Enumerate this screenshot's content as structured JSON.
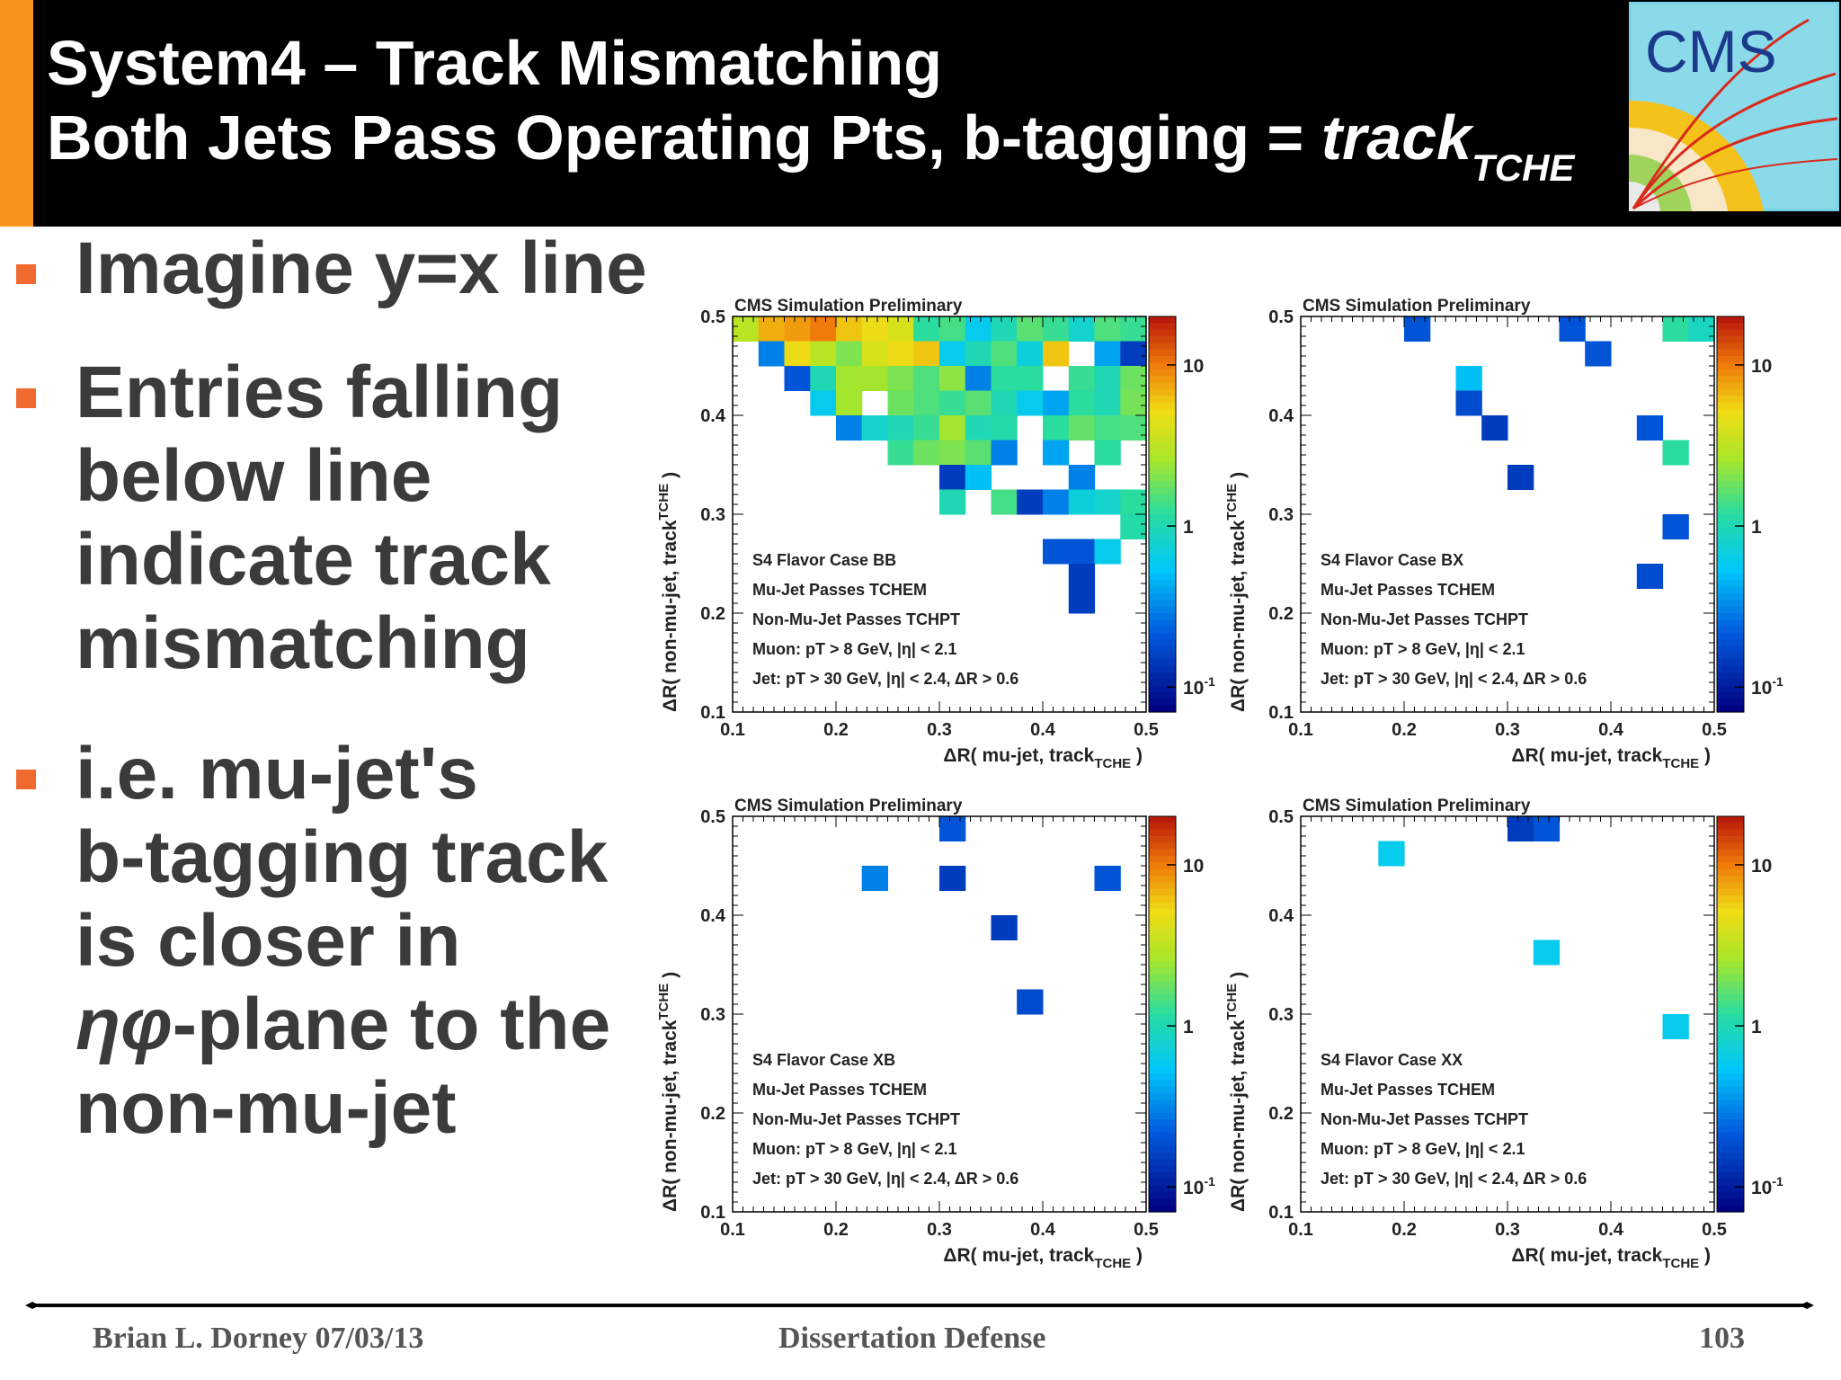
{
  "slide": {
    "title_line1": "System4 – Track Mismatching",
    "title_line2_prefix": "Both Jets Pass Operating Pts, b-tagging = ",
    "title_line2_italic": "track",
    "title_line2_sub": "TCHE",
    "logo_text": "CMS",
    "colors": {
      "header_bg": "#000000",
      "accent": "#f7941d",
      "bullet_marker": "#f06a30",
      "text": "#3b3b3b"
    }
  },
  "bullets": [
    {
      "lines": [
        "Imagine y=x line"
      ]
    },
    {
      "lines": [
        "Entries falling",
        "below line",
        "indicate track",
        "mismatching"
      ]
    },
    {
      "lines": [
        "i.e. mu-jet's",
        "b-tagging track",
        "is closer in"
      ],
      "line_ital": "ηφ",
      "line_rest": "-plane to the",
      "last_line": "non-mu-jet"
    }
  ],
  "footer": {
    "left": "Brian L. Dorney 07/03/13",
    "center": "Dissertation Defense",
    "right": "103"
  },
  "chart_data": [
    {
      "type": "heatmap",
      "title": "CMS Simulation Preliminary",
      "xlabel": "ΔR( mu-jet, track_TCHE )",
      "ylabel": "ΔR( non-mu-jet, track_TCHE )",
      "xlim": [
        0.1,
        0.5
      ],
      "ylim": [
        0.1,
        0.5
      ],
      "x_ticks": [
        "0.1",
        "0.2",
        "0.3",
        "0.4",
        "0.5"
      ],
      "y_ticks": [
        "0.1",
        "0.2",
        "0.3",
        "0.4",
        "0.5"
      ],
      "z_log": true,
      "z_ticks": [
        "10",
        "1",
        "10-1"
      ],
      "annotations": [
        "S4 Flavor Case BB",
        "Mu-Jet Passes TCHEM",
        "Non-Mu-Jet Passes TCHPT",
        "Muon: pT > 8 GeV, |η| < 2.1",
        "Jet: pT > 30 GeV, |η| < 2.4, ΔR > 0.6"
      ],
      "bins": [
        [
          0.1125,
          0.4875,
          3
        ],
        [
          0.1375,
          0.4875,
          7
        ],
        [
          0.1625,
          0.4875,
          8
        ],
        [
          0.1875,
          0.4875,
          10
        ],
        [
          0.2125,
          0.4875,
          6
        ],
        [
          0.2375,
          0.4875,
          5
        ],
        [
          0.2625,
          0.4875,
          4
        ],
        [
          0.2875,
          0.4875,
          1.2
        ],
        [
          0.3125,
          0.4875,
          1.4
        ],
        [
          0.3375,
          0.4875,
          0.6
        ],
        [
          0.3625,
          0.4875,
          1
        ],
        [
          0.3875,
          0.4875,
          1.6
        ],
        [
          0.4125,
          0.4875,
          1.3
        ],
        [
          0.4375,
          0.4875,
          0.8
        ],
        [
          0.4625,
          0.4875,
          1.5
        ],
        [
          0.4875,
          0.4875,
          1.3
        ],
        [
          0.1375,
          0.4625,
          0.3
        ],
        [
          0.1625,
          0.4625,
          5
        ],
        [
          0.1875,
          0.4625,
          3
        ],
        [
          0.2125,
          0.4625,
          2
        ],
        [
          0.2375,
          0.4625,
          4
        ],
        [
          0.2625,
          0.4625,
          5
        ],
        [
          0.2875,
          0.4625,
          6
        ],
        [
          0.3125,
          0.4625,
          0.6
        ],
        [
          0.3375,
          0.4625,
          1
        ],
        [
          0.3625,
          0.4625,
          1.5
        ],
        [
          0.3875,
          0.4625,
          0.7
        ],
        [
          0.4125,
          0.4625,
          6
        ],
        [
          0.4625,
          0.4625,
          0.4
        ],
        [
          0.4875,
          0.4625,
          0.15
        ],
        [
          0.1625,
          0.4375,
          0.2
        ],
        [
          0.1875,
          0.4375,
          1
        ],
        [
          0.2125,
          0.4375,
          2.5
        ],
        [
          0.2375,
          0.4375,
          2.5
        ],
        [
          0.2625,
          0.4375,
          2
        ],
        [
          0.2875,
          0.4375,
          1.5
        ],
        [
          0.3125,
          0.4375,
          2.2
        ],
        [
          0.3375,
          0.4375,
          0.3
        ],
        [
          0.3625,
          0.4375,
          1.2
        ],
        [
          0.3875,
          0.4375,
          1.2
        ],
        [
          0.4375,
          0.4375,
          1.3
        ],
        [
          0.4625,
          0.4375,
          1
        ],
        [
          0.4875,
          0.4375,
          1.8
        ],
        [
          0.1875,
          0.4125,
          0.6
        ],
        [
          0.2125,
          0.4125,
          2.5
        ],
        [
          0.2625,
          0.4125,
          1.8
        ],
        [
          0.2875,
          0.4125,
          1.5
        ],
        [
          0.3125,
          0.4125,
          1.3
        ],
        [
          0.3375,
          0.4125,
          1.6
        ],
        [
          0.3625,
          0.4125,
          1
        ],
        [
          0.3875,
          0.4125,
          0.6
        ],
        [
          0.4125,
          0.4125,
          0.4
        ],
        [
          0.4375,
          0.4125,
          1.2
        ],
        [
          0.4625,
          0.4125,
          1
        ],
        [
          0.4875,
          0.4125,
          1.9
        ],
        [
          0.2125,
          0.3875,
          0.3
        ],
        [
          0.2375,
          0.3875,
          0.8
        ],
        [
          0.2625,
          0.3875,
          1
        ],
        [
          0.2875,
          0.3875,
          1.3
        ],
        [
          0.3125,
          0.3875,
          2.5
        ],
        [
          0.3375,
          0.3875,
          1
        ],
        [
          0.3625,
          0.3875,
          1.1
        ],
        [
          0.4125,
          0.3875,
          1.2
        ],
        [
          0.4375,
          0.3875,
          1.7
        ],
        [
          0.4625,
          0.3875,
          1.4
        ],
        [
          0.4875,
          0.3875,
          1.5
        ],
        [
          0.2625,
          0.3625,
          1.3
        ],
        [
          0.2875,
          0.3625,
          1.8
        ],
        [
          0.3125,
          0.3625,
          2
        ],
        [
          0.3375,
          0.3625,
          1.6
        ],
        [
          0.3625,
          0.3625,
          0.3
        ],
        [
          0.4125,
          0.3625,
          0.4
        ],
        [
          0.4625,
          0.3625,
          1.2
        ],
        [
          0.3125,
          0.3375,
          0.15
        ],
        [
          0.3375,
          0.3375,
          0.5
        ],
        [
          0.4375,
          0.3375,
          0.3
        ],
        [
          0.3125,
          0.3125,
          1
        ],
        [
          0.3625,
          0.3125,
          1.4
        ],
        [
          0.3875,
          0.3125,
          0.15
        ],
        [
          0.4125,
          0.3125,
          0.3
        ],
        [
          0.4375,
          0.3125,
          0.7
        ],
        [
          0.4625,
          0.3125,
          0.8
        ],
        [
          0.4875,
          0.3125,
          1.2
        ],
        [
          0.4875,
          0.2875,
          1.1
        ],
        [
          0.4125,
          0.2625,
          0.2
        ],
        [
          0.4375,
          0.2625,
          0.2
        ],
        [
          0.4625,
          0.2625,
          0.6
        ],
        [
          0.4375,
          0.2375,
          0.15
        ],
        [
          0.4375,
          0.2125,
          0.15
        ]
      ]
    },
    {
      "type": "heatmap",
      "title": "CMS Simulation Preliminary",
      "xlabel": "ΔR( mu-jet, track_TCHE )",
      "ylabel": "ΔR( non-mu-jet, track_TCHE )",
      "xlim": [
        0.1,
        0.5
      ],
      "ylim": [
        0.1,
        0.5
      ],
      "x_ticks": [
        "0.1",
        "0.2",
        "0.3",
        "0.4",
        "0.5"
      ],
      "y_ticks": [
        "0.1",
        "0.2",
        "0.3",
        "0.4",
        "0.5"
      ],
      "z_log": true,
      "z_ticks": [
        "10",
        "1",
        "10-1"
      ],
      "annotations": [
        "S4 Flavor Case BX",
        "Mu-Jet Passes TCHEM",
        "Non-Mu-Jet Passes TCHPT",
        "Muon: pT > 8 GeV, |η| < 2.1",
        "Jet: pT > 30 GeV, |η| < 2.4, ΔR > 0.6"
      ],
      "bins": [
        [
          0.2125,
          0.4875,
          0.2
        ],
        [
          0.3625,
          0.4875,
          0.2
        ],
        [
          0.4625,
          0.4875,
          1.2
        ],
        [
          0.4875,
          0.4875,
          0.9
        ],
        [
          0.3875,
          0.4625,
          0.2
        ],
        [
          0.2625,
          0.4375,
          0.5
        ],
        [
          0.2625,
          0.4125,
          0.18
        ],
        [
          0.2875,
          0.3875,
          0.15
        ],
        [
          0.4375,
          0.3875,
          0.2
        ],
        [
          0.4625,
          0.3625,
          1.2
        ],
        [
          0.3125,
          0.3375,
          0.15
        ],
        [
          0.4625,
          0.2875,
          0.2
        ],
        [
          0.4375,
          0.2375,
          0.18
        ]
      ]
    },
    {
      "type": "heatmap",
      "title": "CMS Simulation Preliminary",
      "xlabel": "ΔR( mu-jet, track_TCHE )",
      "ylabel": "ΔR( non-mu-jet, track_TCHE )",
      "xlim": [
        0.1,
        0.5
      ],
      "ylim": [
        0.1,
        0.5
      ],
      "x_ticks": [
        "0.1",
        "0.2",
        "0.3",
        "0.4",
        "0.5"
      ],
      "y_ticks": [
        "0.1",
        "0.2",
        "0.3",
        "0.4",
        "0.5"
      ],
      "z_log": true,
      "z_ticks": [
        "10",
        "1",
        "10-1"
      ],
      "annotations": [
        "S4 Flavor Case XB",
        "Mu-Jet Passes TCHEM",
        "Non-Mu-Jet Passes TCHPT",
        "Muon: pT > 8 GeV, |η| < 2.1",
        "Jet: pT > 30 GeV, |η| < 2.4, ΔR > 0.6"
      ],
      "bins": [
        [
          0.3125,
          0.4875,
          0.2
        ],
        [
          0.2375,
          0.4375,
          0.3
        ],
        [
          0.3125,
          0.4375,
          0.15
        ],
        [
          0.4625,
          0.4375,
          0.2
        ],
        [
          0.3625,
          0.3875,
          0.15
        ],
        [
          0.3875,
          0.3125,
          0.18
        ]
      ]
    },
    {
      "type": "heatmap",
      "title": "CMS Simulation Preliminary",
      "xlabel": "ΔR( mu-jet, track_TCHE )",
      "ylabel": "ΔR( non-mu-jet, track_TCHE )",
      "xlim": [
        0.1,
        0.5
      ],
      "ylim": [
        0.1,
        0.5
      ],
      "x_ticks": [
        "0.1",
        "0.2",
        "0.3",
        "0.4",
        "0.5"
      ],
      "y_ticks": [
        "0.1",
        "0.2",
        "0.3",
        "0.4",
        "0.5"
      ],
      "z_log": true,
      "z_ticks": [
        "10",
        "1",
        "10-1"
      ],
      "annotations": [
        "S4 Flavor Case XX",
        "Mu-Jet Passes TCHEM",
        "Non-Mu-Jet Passes TCHPT",
        "Muon: pT > 8 GeV, |η| < 2.1",
        "Jet: pT > 30 GeV, |η| < 2.4, ΔR > 0.6"
      ],
      "bins": [
        [
          0.3125,
          0.4875,
          0.15
        ],
        [
          0.3375,
          0.4875,
          0.2
        ],
        [
          0.1875,
          0.4625,
          0.6
        ],
        [
          0.3375,
          0.3625,
          0.6
        ],
        [
          0.4625,
          0.2875,
          0.6
        ]
      ]
    }
  ]
}
